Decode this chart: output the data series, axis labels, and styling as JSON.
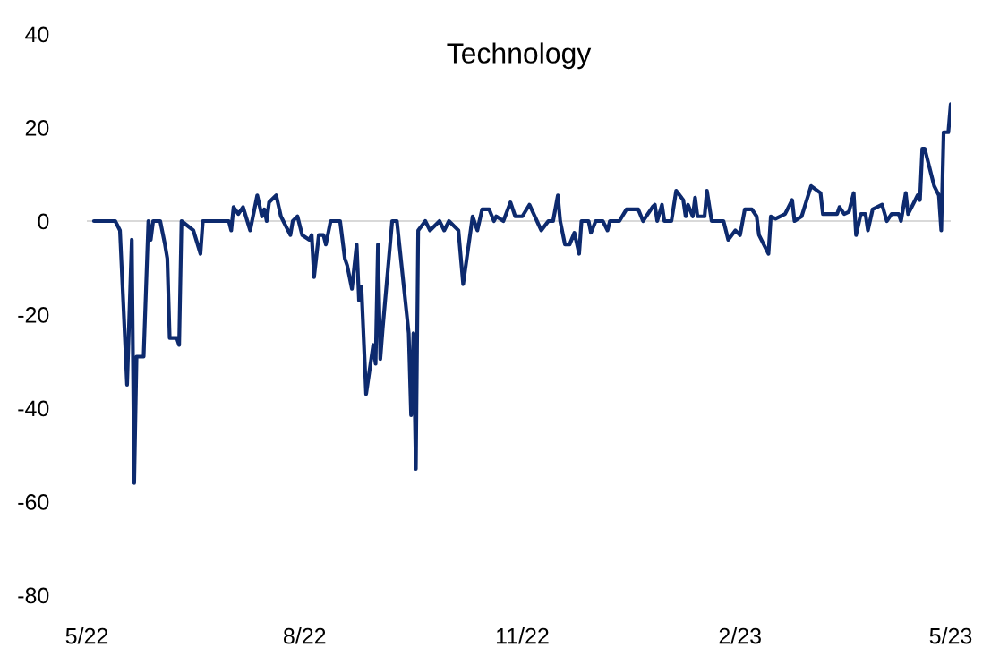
{
  "chart_data": {
    "type": "line",
    "title": "Technology",
    "x": [
      "2022-05-04",
      "2022-05-13",
      "2022-05-15",
      "2022-05-18",
      "2022-05-20",
      "2022-05-21",
      "2022-05-22",
      "2022-05-25",
      "2022-05-27",
      "2022-05-28",
      "2022-05-29",
      "2022-06-01",
      "2022-06-03",
      "2022-06-04",
      "2022-06-05",
      "2022-06-08",
      "2022-06-09",
      "2022-06-10",
      "2022-06-15",
      "2022-06-18",
      "2022-06-19",
      "2022-06-30",
      "2022-07-01",
      "2022-07-02",
      "2022-07-04",
      "2022-07-06",
      "2022-07-09",
      "2022-07-12",
      "2022-07-14",
      "2022-07-15",
      "2022-07-16",
      "2022-07-17",
      "2022-07-20",
      "2022-07-22",
      "2022-07-26",
      "2022-07-27",
      "2022-07-29",
      "2022-07-31",
      "2022-08-03",
      "2022-08-04",
      "2022-08-05",
      "2022-08-07",
      "2022-08-09",
      "2022-08-10",
      "2022-08-12",
      "2022-08-16",
      "2022-08-18",
      "2022-08-19",
      "2022-08-21",
      "2022-08-23",
      "2022-08-24",
      "2022-08-25",
      "2022-08-27",
      "2022-08-30",
      "2022-08-31",
      "2022-09-01",
      "2022-09-02",
      "2022-09-03",
      "2022-09-07",
      "2022-09-09",
      "2022-09-14",
      "2022-09-15",
      "2022-09-16",
      "2022-09-17",
      "2022-09-18",
      "2022-09-21",
      "2022-09-23",
      "2022-09-27",
      "2022-09-29",
      "2022-10-01",
      "2022-10-05",
      "2022-10-07",
      "2022-10-11",
      "2022-10-13",
      "2022-10-15",
      "2022-10-18",
      "2022-10-20",
      "2022-10-21",
      "2022-10-24",
      "2022-10-27",
      "2022-10-29",
      "2022-11-01",
      "2022-11-04",
      "2022-11-09",
      "2022-11-12",
      "2022-11-14",
      "2022-11-16",
      "2022-11-17",
      "2022-11-19",
      "2022-11-21",
      "2022-11-23",
      "2022-11-25",
      "2022-11-26",
      "2022-11-29",
      "2022-11-30",
      "2022-12-02",
      "2022-12-05",
      "2022-12-07",
      "2022-12-08",
      "2022-12-12",
      "2022-12-15",
      "2022-12-20",
      "2022-12-22",
      "2022-12-26",
      "2022-12-27",
      "2022-12-28",
      "2022-12-30",
      "2022-12-31",
      "2023-01-03",
      "2023-01-05",
      "2023-01-08",
      "2023-01-09",
      "2023-01-10",
      "2023-01-12",
      "2023-01-13",
      "2023-01-14",
      "2023-01-17",
      "2023-01-18",
      "2023-01-20",
      "2023-01-25",
      "2023-01-27",
      "2023-01-30",
      "2023-02-01",
      "2023-02-03",
      "2023-02-06",
      "2023-02-08",
      "2023-02-09",
      "2023-02-13",
      "2023-02-14",
      "2023-02-16",
      "2023-02-20",
      "2023-02-23",
      "2023-02-24",
      "2023-02-27",
      "2023-03-03",
      "2023-03-07",
      "2023-03-08",
      "2023-03-14",
      "2023-03-15",
      "2023-03-17",
      "2023-03-19",
      "2023-03-21",
      "2023-03-22",
      "2023-03-24",
      "2023-03-26",
      "2023-03-27",
      "2023-03-29",
      "2023-04-02",
      "2023-04-04",
      "2023-04-06",
      "2023-04-09",
      "2023-04-10",
      "2023-04-12",
      "2023-04-13",
      "2023-04-17",
      "2023-04-18",
      "2023-04-19",
      "2023-04-20",
      "2023-04-24",
      "2023-04-26",
      "2023-04-27",
      "2023-04-28",
      "2023-04-30",
      "2023-05-01"
    ],
    "series": [
      {
        "color": "#0d2a6e",
        "values": [
          0,
          0,
          -2,
          -35,
          -4,
          -56,
          -29,
          -29,
          0,
          -4,
          0,
          0,
          -5,
          -8,
          -25,
          -25,
          -26.5,
          0,
          -2,
          -7,
          0,
          0,
          -2,
          3,
          1.5,
          3,
          -2,
          5.5,
          1,
          2.5,
          0,
          4,
          5.5,
          1,
          -3,
          0,
          1,
          -3,
          -4,
          -3,
          -12,
          -3,
          -3,
          -5,
          0,
          0,
          -8,
          -9.5,
          -14.5,
          -5,
          -17,
          -14,
          -37,
          -26.5,
          -30.5,
          -5,
          -29.5,
          -23,
          0,
          0,
          -24,
          -41.5,
          -24,
          -53,
          -2,
          0,
          -2,
          0,
          -2,
          0,
          -2,
          -13.5,
          1,
          -2,
          2.5,
          2.5,
          0,
          1,
          0,
          4,
          1,
          1,
          3.5,
          -2,
          0,
          0,
          5.5,
          0,
          -5,
          -5,
          -2.5,
          -7,
          0,
          0,
          -2.5,
          0,
          0,
          -2,
          0,
          0,
          2.5,
          2.5,
          0,
          3,
          3.5,
          0,
          3.5,
          0,
          0,
          6.5,
          4.5,
          1,
          3.5,
          1,
          5,
          1,
          1,
          6.5,
          0,
          0,
          -4,
          -2,
          -3,
          2.5,
          2.5,
          1,
          -3,
          -7,
          1,
          0.5,
          1.5,
          4.5,
          0,
          1,
          7.5,
          6,
          1.5,
          1.5,
          3,
          1.5,
          2,
          6,
          -3,
          1.5,
          1.5,
          -2,
          2.5,
          3.5,
          0,
          1.5,
          1.5,
          0,
          6,
          1.5,
          5.5,
          4.5,
          15.5,
          15.5,
          7.5,
          5.5,
          -2,
          19,
          19,
          25
        ]
      }
    ],
    "xlim": [
      "2022-05-01",
      "2023-05-01"
    ],
    "xticks": [
      {
        "value": "2022-05-01",
        "label": "5/22"
      },
      {
        "value": "2022-08-01",
        "label": "8/22"
      },
      {
        "value": "2022-11-01",
        "label": "11/22"
      },
      {
        "value": "2023-02-01",
        "label": "2/23"
      },
      {
        "value": "2023-05-01",
        "label": "5/23"
      }
    ],
    "ylim": [
      -80,
      40
    ],
    "yticks": [
      -80,
      -60,
      -40,
      -20,
      0,
      20,
      40
    ],
    "ref_lines": [
      {
        "axis": "y",
        "value": 0,
        "color": "#d9d9d9"
      }
    ],
    "marker": "none",
    "line_style": "solid"
  }
}
